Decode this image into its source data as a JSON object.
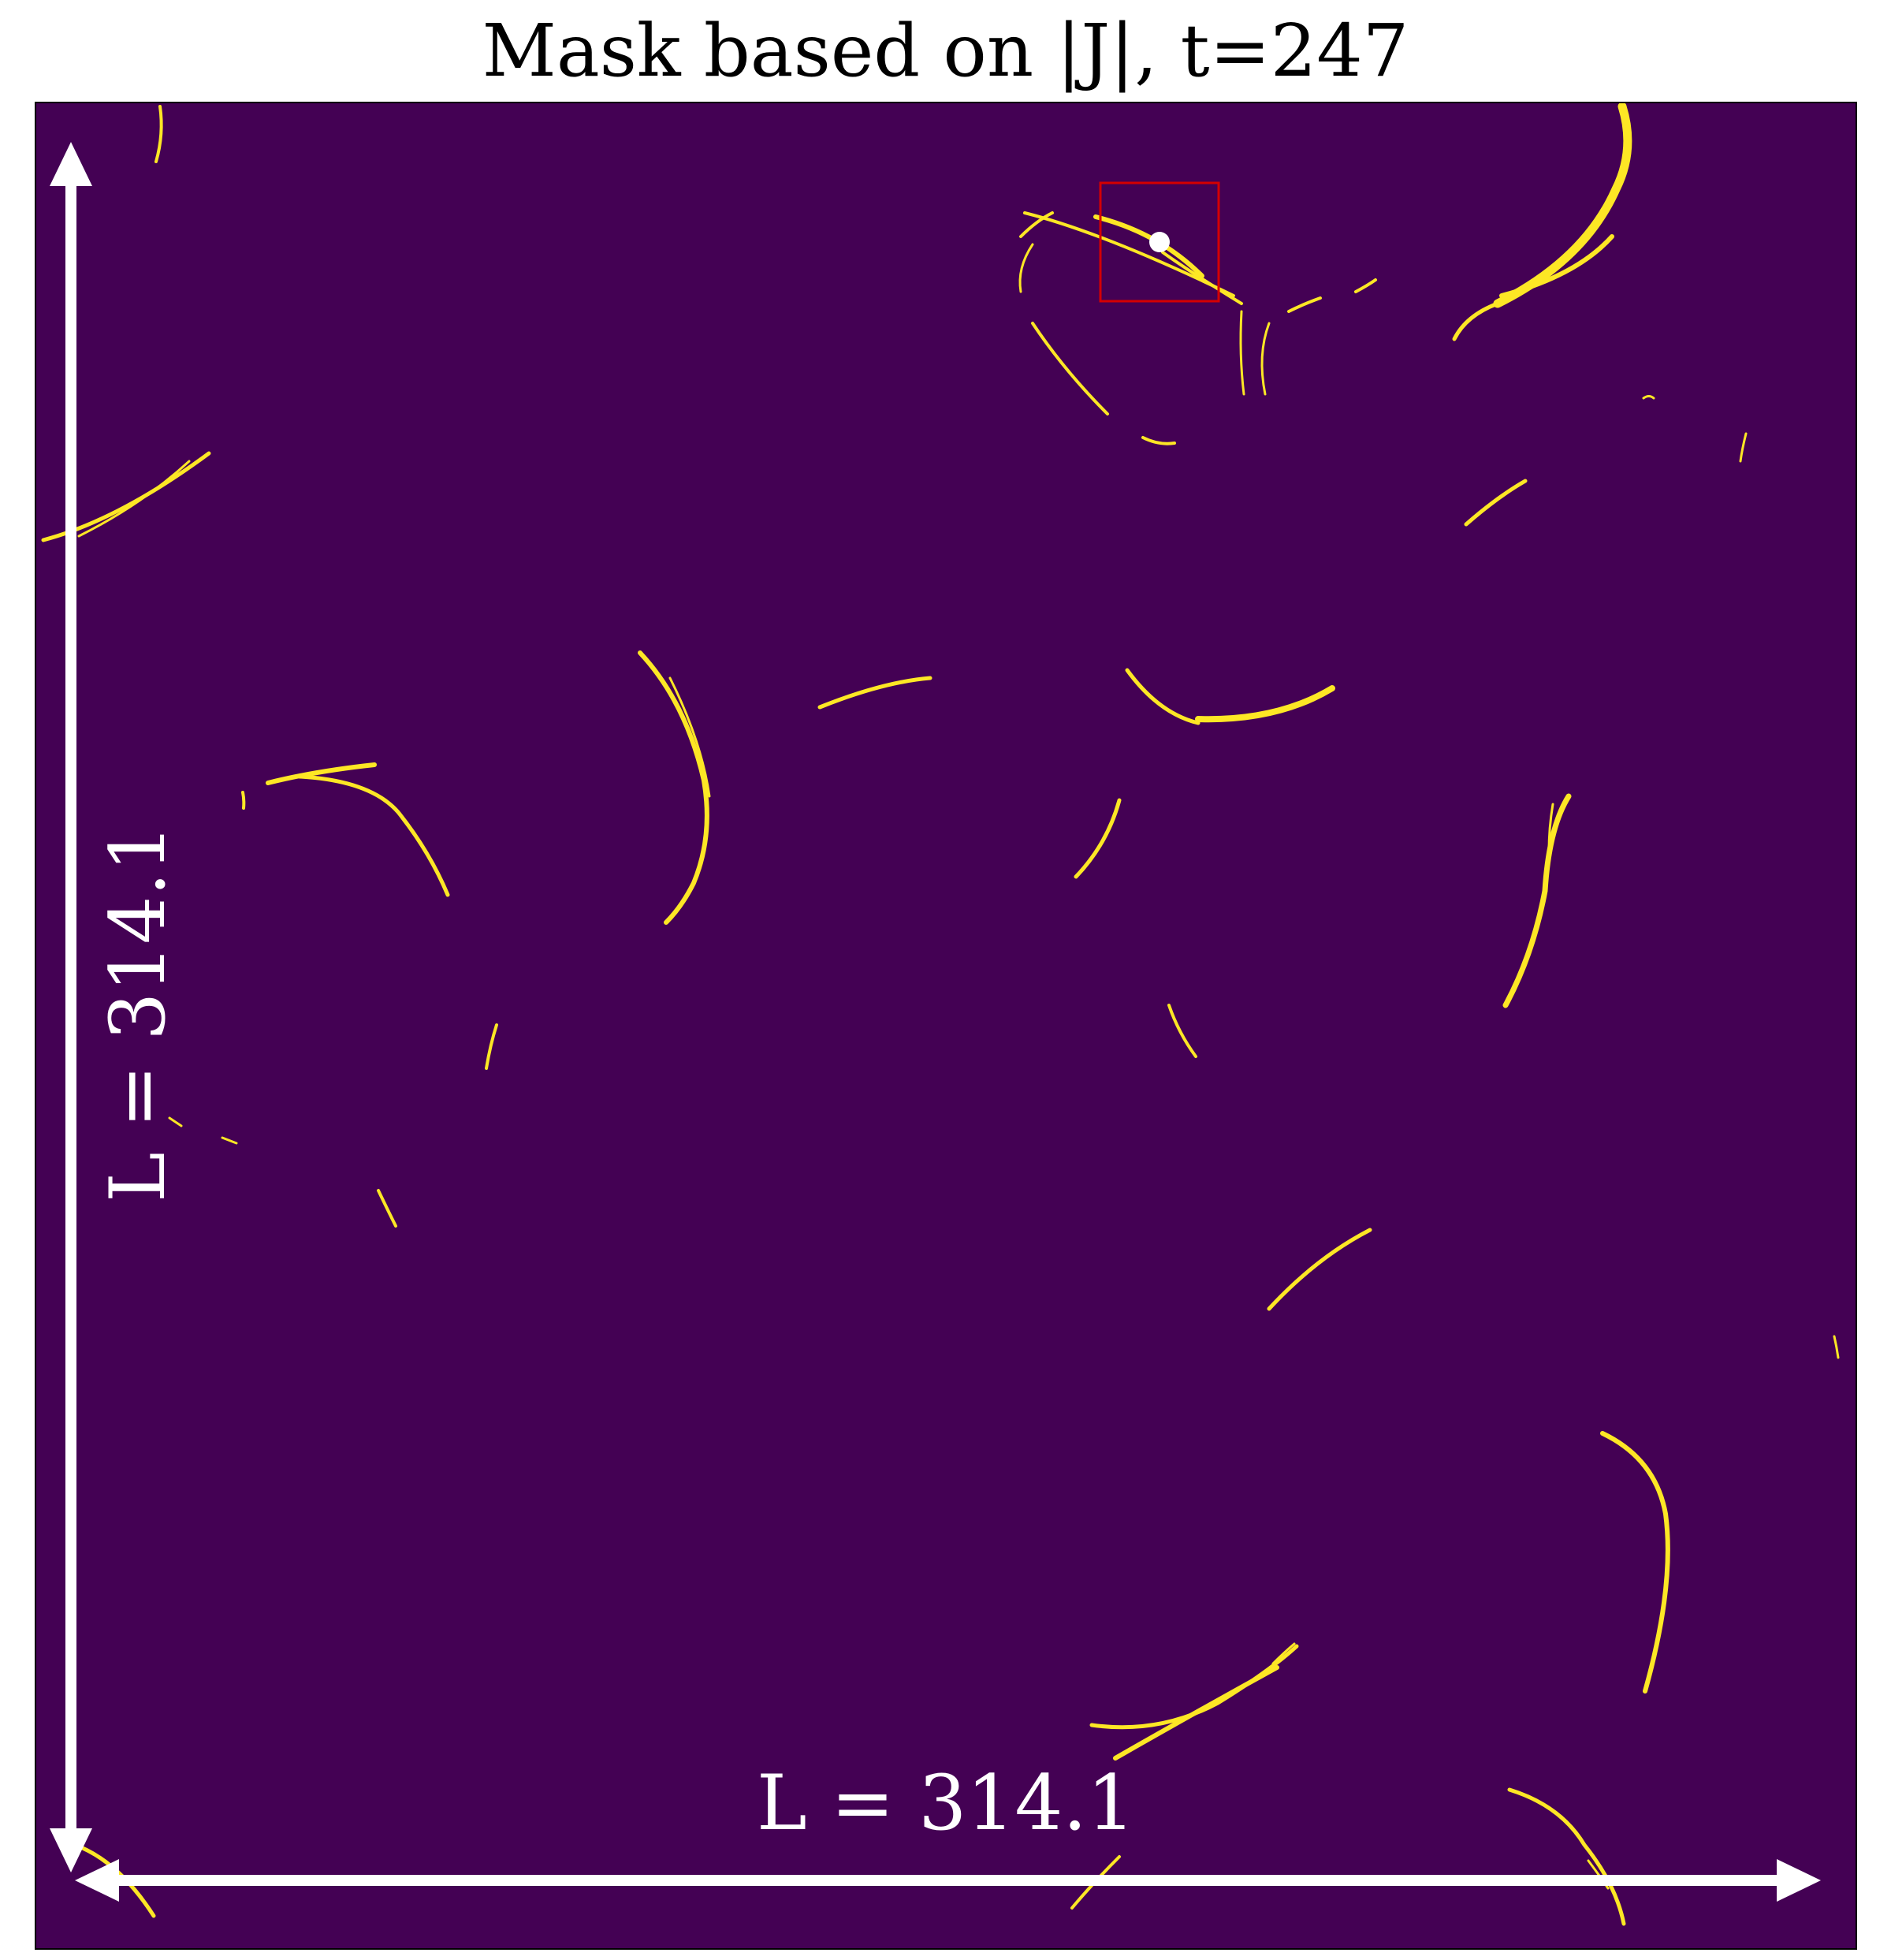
{
  "title": "Mask based on |J|, t=247",
  "annotations": {
    "horizontal_length_label": "L = 314.1",
    "vertical_length_label": "L = 314.1"
  },
  "colors": {
    "background": "#440154",
    "mask": "#fde725",
    "annotation": "#ffffff",
    "highlight_box": "#d40000",
    "frame": "#000000"
  }
}
